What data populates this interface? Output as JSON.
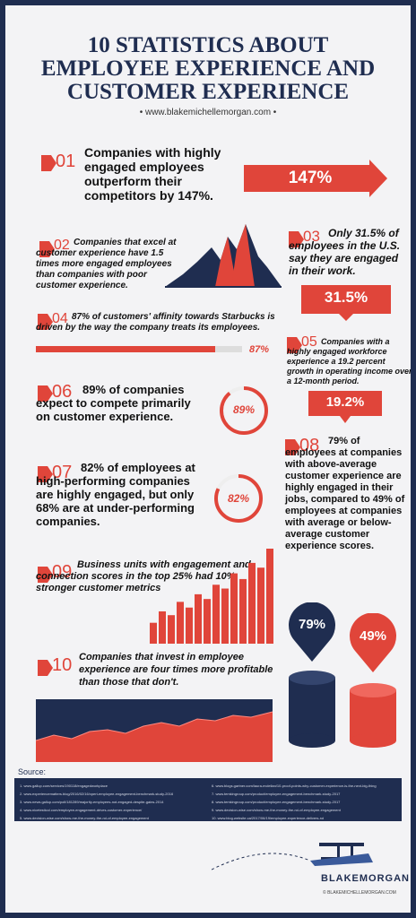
{
  "title": {
    "line1": "10 STATISTICS ABOUT",
    "line2": "EMPLOYEE EXPERIENCE AND",
    "line3": "CUSTOMER EXPERIENCE"
  },
  "website": "• www.blakemichellemorgan.com •",
  "stats": [
    {
      "num": "01",
      "text": "Companies with highly engaged employees outperform their competitors by 147%.",
      "value": "147%"
    },
    {
      "num": "02",
      "text": "Companies that excel at customer experience have 1.5 times more engaged employees than companies with poor customer experience."
    },
    {
      "num": "03",
      "text": "Only 31.5% of employees in the U.S. say they are engaged in their work.",
      "value": "31.5%"
    },
    {
      "num": "04",
      "text": "87% of customers' affinity towards Starbucks is driven by the way the company treats its employees.",
      "value": "87%",
      "fill": 0.87
    },
    {
      "num": "05",
      "text": "Companies with a highly engaged workforce experience a 19.2 percent growth in operating income over a 12-month period.",
      "value": "19.2%"
    },
    {
      "num": "06",
      "text": "89% of companies expect to compete primarily on customer experience.",
      "value": "89%",
      "fill": 0.89
    },
    {
      "num": "07",
      "text": "82% of employees at high-performing companies are highly engaged, but only 68% are at under-performing companies.",
      "value": "82%",
      "fill": 0.82
    },
    {
      "num": "08",
      "text": "79% of employees at companies with above-average customer experience are highly engaged in their jobs, compared to 49% of employees at companies with average or below-average customer experience scores.",
      "value_a": "79%",
      "value_b": "49%"
    },
    {
      "num": "09",
      "text": "Business units with engagement and connection scores in the top 25% had 10% stronger customer metrics"
    },
    {
      "num": "10",
      "text": "Companies that invest in employee experience are four times more profitable than those that don't."
    }
  ],
  "sources_label": "Source:",
  "sources_left": [
    "1. www.gallup.com/services/190118/engagedworkplace",
    "2. www.experiencematters.blog/2016/02/16/xpert-employee-engagement-benchmark-study-2016",
    "3. www.news.gallup.com/poll/181289/majority-employees-not-engaged-despite-gains-2014",
    "4. www.nicetesticol.com/employee-engagement-drives-customer-experience/",
    "5. www.decision-wise.com/show-me-the-money-the-roi-of-employee-engagement"
  ],
  "sources_right": [
    "6. www.blogs.gartner.com/laura-mcleilan/10-proof-points-why-customer-experience-is-the-next-big-thing",
    "7. www.temkingroup.com/product/employee-engagement-benchmark-study-2017",
    "8. www.temkingroup.com/product/employee-engagement-benchmark-study-2017",
    "9. www.decision-wise.com/show-me-the-money-the-roi-of-employee-engagement",
    "10. www.blog.website.ca/2017/06/19/employee-experience-delivers-roi"
  ],
  "logo": "BLAKEMORGAN",
  "copyright": "© BLAKEMICHELLEMORGAN.COM",
  "colors": {
    "navy": "#1f2d50",
    "red": "#e0453a"
  },
  "chart09_bars": [
    0.22,
    0.34,
    0.3,
    0.44,
    0.38,
    0.52,
    0.47,
    0.62,
    0.58,
    0.74,
    0.68,
    0.85,
    0.8,
    1.0
  ]
}
